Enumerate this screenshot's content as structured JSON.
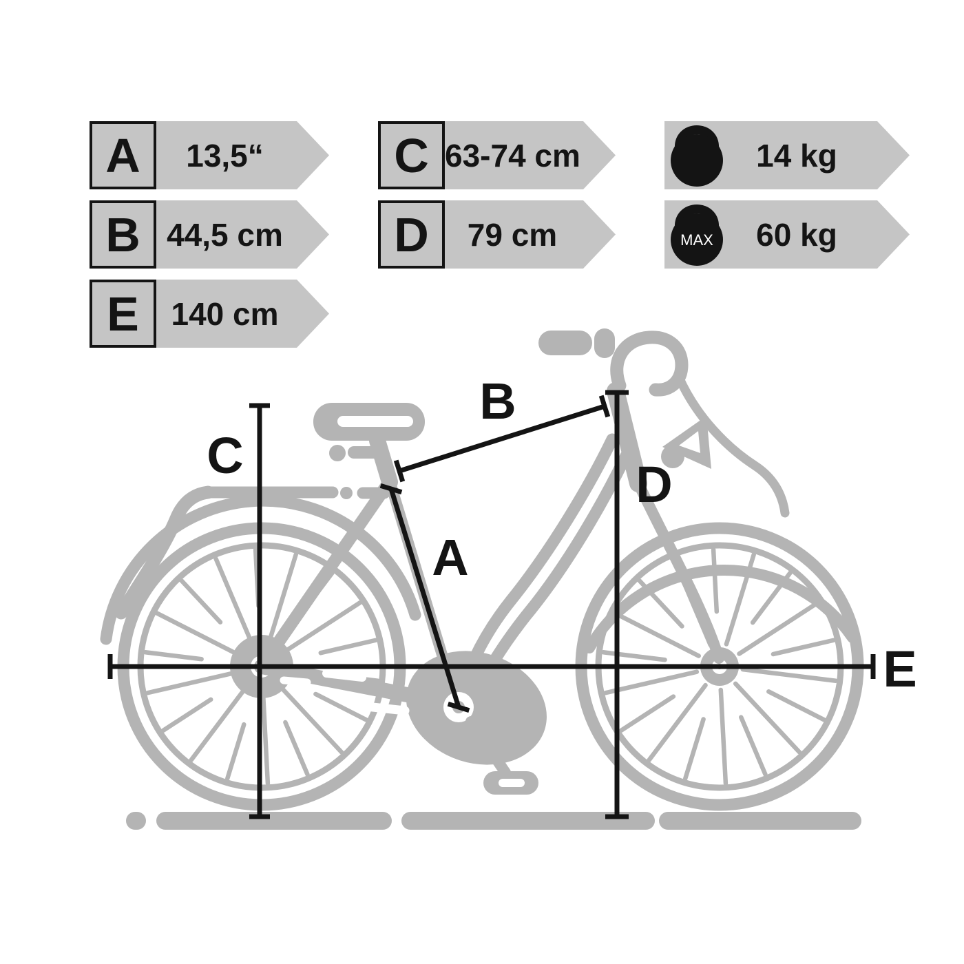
{
  "banners": {
    "a": {
      "letter": "A",
      "value": "13,5“"
    },
    "b": {
      "letter": "B",
      "value": "44,5 cm"
    },
    "e": {
      "letter": "E",
      "value": "140 cm"
    },
    "c": {
      "letter": "C",
      "value": "63-74 cm"
    },
    "d": {
      "letter": "D",
      "value": "79 cm"
    },
    "weight": {
      "value": "14 kg",
      "icon": "kettlebell-icon"
    },
    "max_weight": {
      "value": "60 kg",
      "badge": "MAX",
      "icon": "kettlebell-max-icon"
    }
  },
  "diagram": {
    "labels": {
      "a": "A",
      "b": "B",
      "c": "C",
      "d": "D",
      "e": "E"
    },
    "measures": {
      "A": "seat tube length 13,5“",
      "B": "top tube length 44,5 cm",
      "C": "saddle height 63-74 cm",
      "D": "standover/handlebar height 79 cm",
      "E": "total length 140 cm"
    }
  },
  "colors": {
    "banner": "#c5c5c5",
    "bike": "#b4b4b4",
    "ink": "#141414"
  }
}
